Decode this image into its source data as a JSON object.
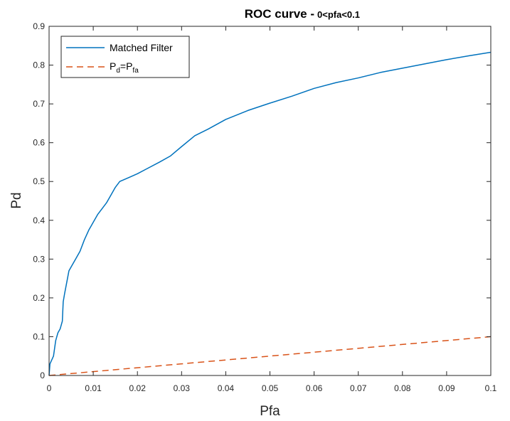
{
  "chart_data": {
    "type": "line",
    "title": "ROC curve - ",
    "title_range": "0<pfa<0.1",
    "xlabel": "Pfa",
    "ylabel": "Pd",
    "xlim": [
      0,
      0.1
    ],
    "ylim": [
      0,
      0.9
    ],
    "xticks": [
      0,
      0.01,
      0.02,
      0.03,
      0.04,
      0.05,
      0.06,
      0.07,
      0.08,
      0.09,
      0.1
    ],
    "xtick_labels": [
      "0",
      "0.01",
      "0.02",
      "0.03",
      "0.04",
      "0.05",
      "0.06",
      "0.07",
      "0.08",
      "0.09",
      "0.1"
    ],
    "yticks": [
      0,
      0.1,
      0.2,
      0.3,
      0.4,
      0.5,
      0.6,
      0.7,
      0.8,
      0.9
    ],
    "ytick_labels": [
      "0",
      "0.1",
      "0.2",
      "0.3",
      "0.4",
      "0.5",
      "0.6",
      "0.7",
      "0.8",
      "0.9"
    ],
    "grid": false,
    "legend_position": "top-left",
    "series": [
      {
        "name": "Matched Filter",
        "color": "#0072BD",
        "style": "solid",
        "x": [
          0,
          0.0002,
          0.0004,
          0.0006,
          0.0008,
          0.001,
          0.0015,
          0.002,
          0.0025,
          0.003,
          0.0032,
          0.0035,
          0.004,
          0.0045,
          0.005,
          0.006,
          0.007,
          0.008,
          0.009,
          0.01,
          0.011,
          0.012,
          0.013,
          0.014,
          0.015,
          0.016,
          0.018,
          0.02,
          0.022,
          0.025,
          0.0275,
          0.03,
          0.033,
          0.036,
          0.04,
          0.045,
          0.05,
          0.055,
          0.06,
          0.065,
          0.07,
          0.075,
          0.08,
          0.085,
          0.09,
          0.095,
          0.1
        ],
        "y": [
          0,
          0.03,
          0.035,
          0.04,
          0.045,
          0.05,
          0.09,
          0.11,
          0.12,
          0.14,
          0.19,
          0.21,
          0.24,
          0.27,
          0.28,
          0.3,
          0.32,
          0.35,
          0.375,
          0.395,
          0.415,
          0.43,
          0.445,
          0.465,
          0.485,
          0.5,
          0.51,
          0.52,
          0.532,
          0.55,
          0.566,
          0.59,
          0.618,
          0.635,
          0.66,
          0.683,
          0.702,
          0.72,
          0.74,
          0.755,
          0.767,
          0.781,
          0.792,
          0.803,
          0.814,
          0.824,
          0.833
        ]
      },
      {
        "name": "P_d=P_fa",
        "legend_main_1": "P",
        "legend_sub_1": "d",
        "legend_eq": "=P",
        "legend_sub_2": "fa",
        "color": "#D95319",
        "style": "dashed",
        "x": [
          0,
          0.1
        ],
        "y": [
          0,
          0.1
        ]
      }
    ]
  }
}
